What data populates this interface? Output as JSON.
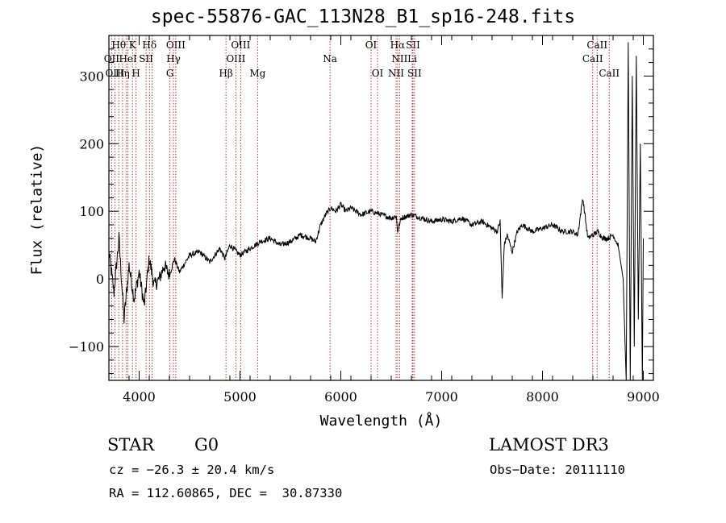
{
  "chart_data": {
    "type": "line",
    "title": "spec-55876-GAC_113N28_B1_sp16-248.fits",
    "xlabel": "Wavelength (Å)",
    "ylabel": "Flux (relative)",
    "xlim": [
      3700,
      9100
    ],
    "ylim": [
      -150,
      360
    ],
    "xticks": [
      4000,
      5000,
      6000,
      7000,
      8000,
      9000
    ],
    "xtick_labels": [
      "4000",
      "5000",
      "6000",
      "7000",
      "8000",
      "9000"
    ],
    "yticks": [
      -100,
      0,
      100,
      200,
      300
    ],
    "ytick_labels": [
      "−100",
      "0",
      "100",
      "200",
      "300"
    ],
    "series": [
      {
        "name": "flux",
        "x": [
          3700,
          3750,
          3800,
          3850,
          3900,
          3950,
          4000,
          4050,
          4100,
          4150,
          4200,
          4250,
          4300,
          4350,
          4400,
          4500,
          4600,
          4700,
          4800,
          4850,
          4900,
          5000,
          5100,
          5200,
          5300,
          5400,
          5500,
          5600,
          5700,
          5750,
          5800,
          5850,
          5900,
          5950,
          6000,
          6050,
          6100,
          6200,
          6300,
          6400,
          6500,
          6550,
          6563,
          6600,
          6700,
          6800,
          6900,
          7000,
          7100,
          7200,
          7300,
          7400,
          7500,
          7550,
          7580,
          7600,
          7620,
          7650,
          7700,
          7750,
          7800,
          7900,
          8000,
          8100,
          8200,
          8300,
          8350,
          8400,
          8450,
          8500,
          8550,
          8600,
          8650,
          8700,
          8750,
          8800,
          8830,
          8850,
          8870,
          8890,
          8910,
          8930,
          8950,
          8970,
          8990,
          9000
        ],
        "y": [
          40,
          -20,
          60,
          -60,
          20,
          -30,
          10,
          -40,
          30,
          -10,
          0,
          20,
          5,
          30,
          10,
          35,
          40,
          25,
          45,
          30,
          50,
          35,
          45,
          55,
          60,
          50,
          55,
          65,
          60,
          55,
          80,
          95,
          105,
          100,
          110,
          100,
          105,
          95,
          100,
          95,
          90,
          93,
          70,
          90,
          95,
          90,
          85,
          88,
          85,
          90,
          80,
          85,
          75,
          70,
          85,
          -30,
          50,
          65,
          40,
          70,
          80,
          70,
          75,
          80,
          70,
          70,
          65,
          120,
          60,
          65,
          70,
          60,
          60,
          65,
          50,
          0,
          -150,
          350,
          -150,
          300,
          -100,
          330,
          -60,
          200,
          -150,
          60
        ]
      }
    ],
    "lines": [
      {
        "name": "Hθ",
        "x": 3798,
        "row": 0
      },
      {
        "name": "CaII",
        "x": 3934,
        "row": 0,
        "label": "K"
      },
      {
        "name": "Hδ",
        "x": 4102,
        "row": 0
      },
      {
        "name": "OIII",
        "x": 4363,
        "row": 0
      },
      {
        "name": "OIII",
        "x": 5007,
        "row": 0
      },
      {
        "name": "OI",
        "x": 6300,
        "row": 0
      },
      {
        "name": "Hα",
        "x": 6563,
        "row": 0
      },
      {
        "name": "SII",
        "x": 6716,
        "row": 0
      },
      {
        "name": "CaII",
        "x": 8542,
        "row": 0
      },
      {
        "name": "OII",
        "x": 3727,
        "row": 1
      },
      {
        "name": "HeI",
        "x": 3889,
        "row": 1
      },
      {
        "name": "SII",
        "x": 4069,
        "row": 1
      },
      {
        "name": "Hγ",
        "x": 4340,
        "row": 1
      },
      {
        "name": "OIII",
        "x": 4959,
        "row": 1
      },
      {
        "name": "Na",
        "x": 5893,
        "row": 1
      },
      {
        "name": "NII",
        "x": 6583,
        "row": 1
      },
      {
        "name": "Li",
        "x": 6708,
        "row": 1
      },
      {
        "name": "CaII",
        "x": 8498,
        "row": 1
      },
      {
        "name": "OIII",
        "x": 3760,
        "row": 2
      },
      {
        "name": "Hη",
        "x": 3835,
        "row": 2
      },
      {
        "name": "H",
        "x": 3969,
        "row": 2
      },
      {
        "name": "G",
        "x": 4305,
        "row": 2
      },
      {
        "name": "Hβ",
        "x": 4861,
        "row": 2
      },
      {
        "name": "Mg",
        "x": 5175,
        "row": 2
      },
      {
        "name": "OI",
        "x": 6364,
        "row": 2
      },
      {
        "name": "NII",
        "x": 6548,
        "row": 2
      },
      {
        "name": "SII",
        "x": 6731,
        "row": 2
      },
      {
        "name": "CaII",
        "x": 8662,
        "row": 2
      },
      {
        "name": "",
        "x": 3870,
        "row": 3
      },
      {
        "name": "",
        "x": 4128,
        "row": 3
      }
    ],
    "grid": false,
    "legend": "none"
  },
  "info": {
    "object_class": "STAR",
    "subclass": "G0",
    "survey": "LAMOST DR3",
    "cz": "cz = −26.3 ± 20.4 km/s",
    "obs_date": "Obs−Date: 20111110",
    "coords": "RA = 112.60865, DEC =  30.87330"
  }
}
